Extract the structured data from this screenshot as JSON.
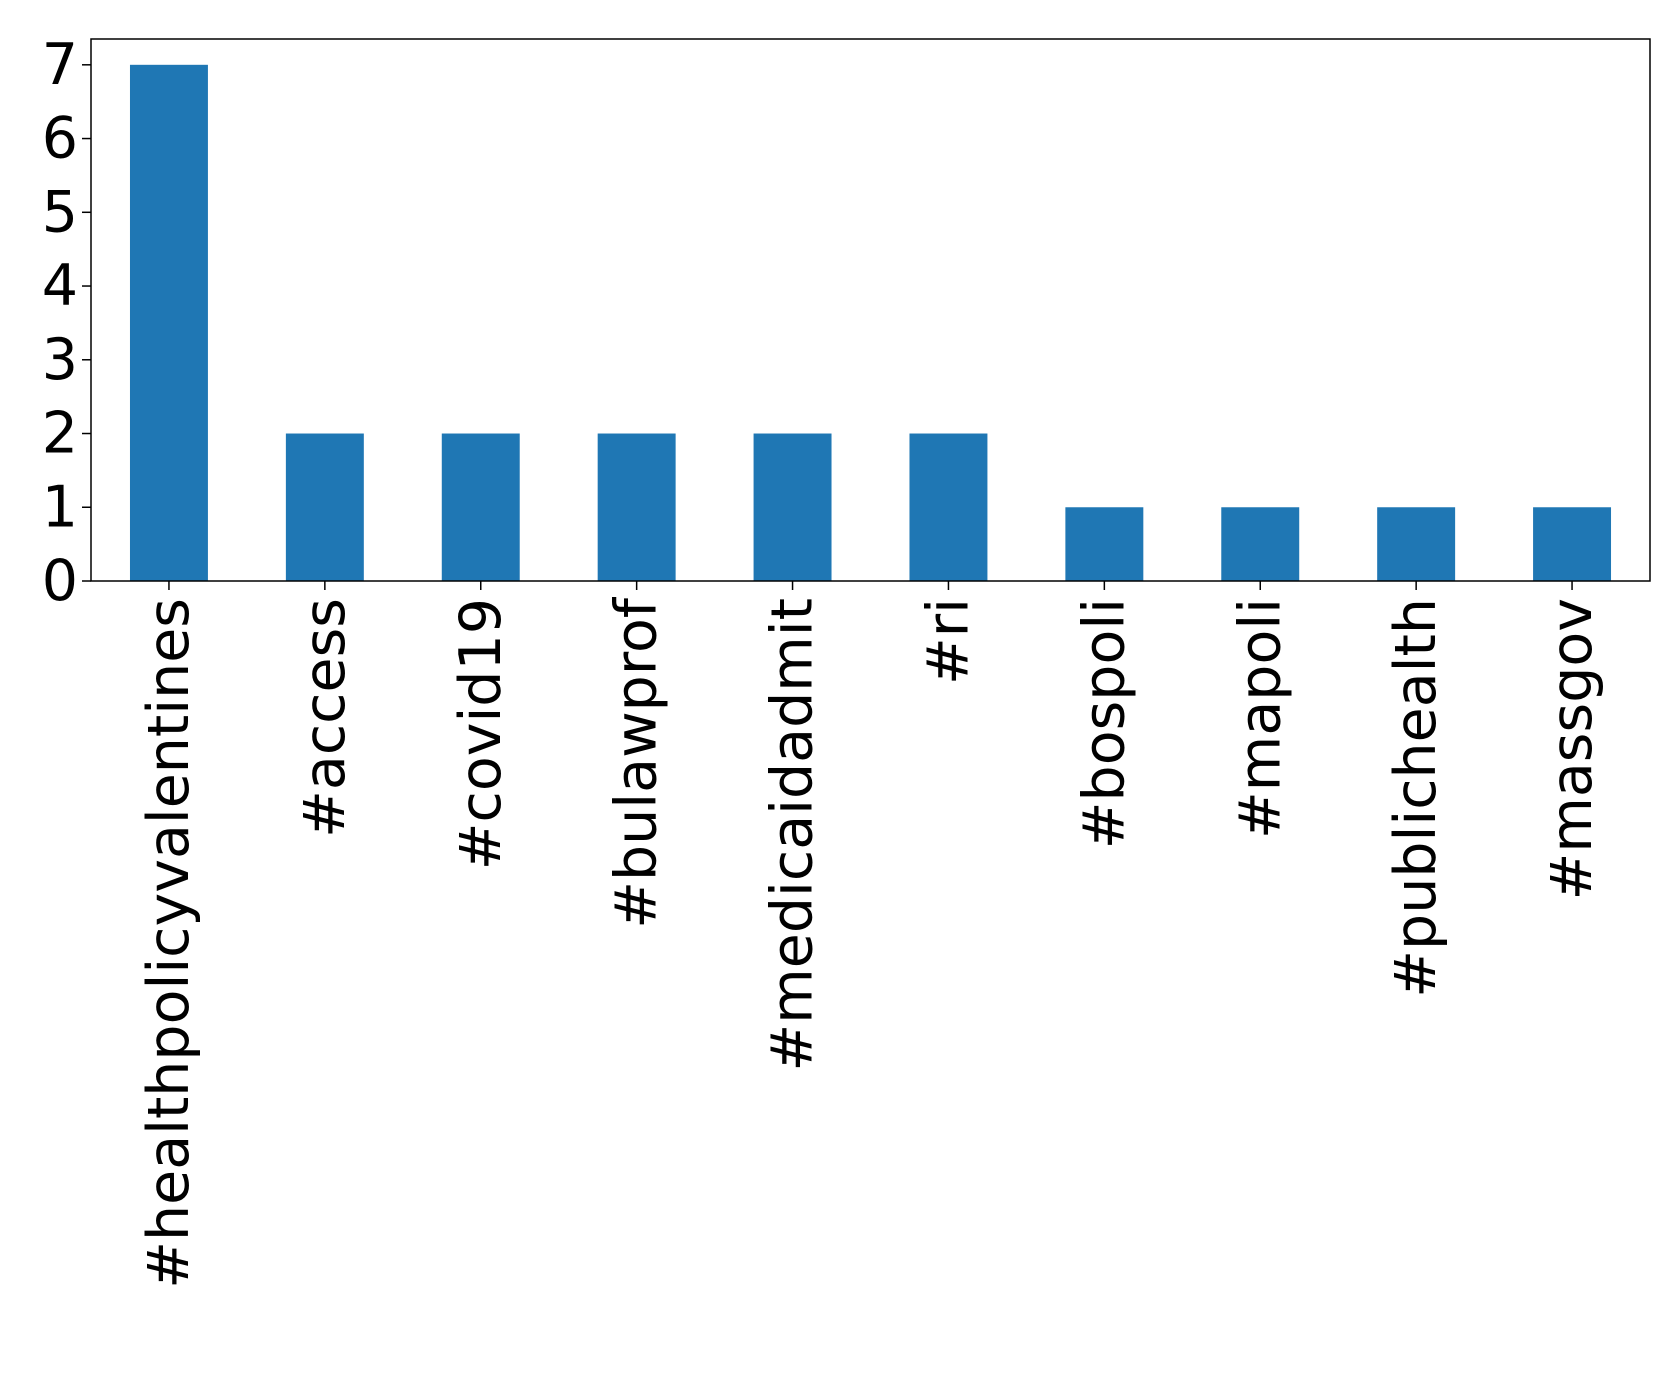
{
  "chart_data": {
    "type": "bar",
    "title": "",
    "xlabel": "",
    "ylabel": "",
    "categories": [
      "#healthpolicyvalentines",
      "#access",
      "#covid19",
      "#bulawprof",
      "#medicaidadmit",
      "#ri",
      "#bospoli",
      "#mapoli",
      "#publichealth",
      "#massgov"
    ],
    "values": [
      7,
      2,
      2,
      2,
      2,
      2,
      1,
      1,
      1,
      1
    ],
    "ylim": [
      0,
      7.35
    ],
    "yticks": [
      0,
      1,
      2,
      3,
      4,
      5,
      6,
      7
    ],
    "bar_color": "#1f77b4",
    "grid": false,
    "legend": "none"
  }
}
